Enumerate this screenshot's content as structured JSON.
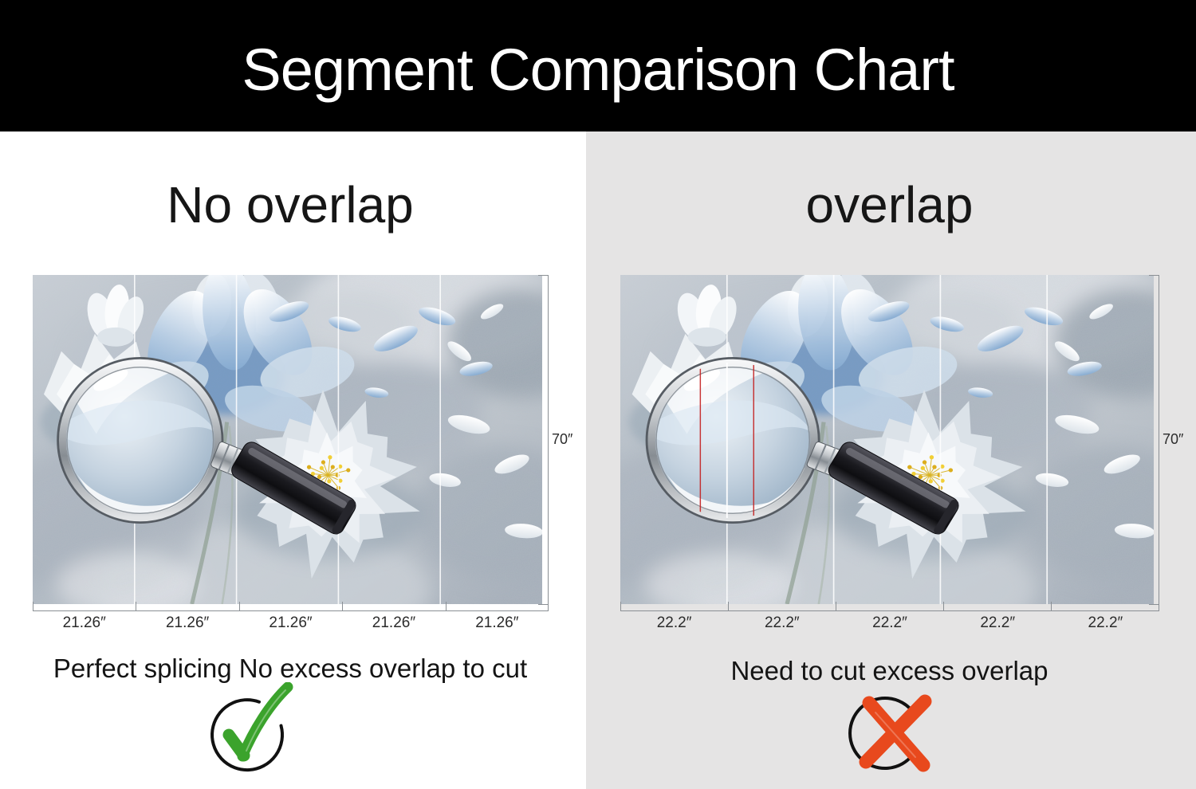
{
  "header": {
    "title": "Segment Comparison Chart"
  },
  "panels": [
    {
      "heading": "No overlap",
      "caption": "Perfect splicing No excess overlap to cut",
      "segment_labels": [
        "21.26″",
        "21.26″",
        "21.26″",
        "21.26″",
        "21.26″"
      ],
      "height_label": "70″",
      "verdict": "check"
    },
    {
      "heading": "overlap",
      "caption": "Need to cut excess overlap",
      "segment_labels": [
        "22.2″",
        "22.2″",
        "22.2″",
        "22.2″",
        "22.2″"
      ],
      "height_label": "70″",
      "verdict": "cross"
    }
  ],
  "colors": {
    "header_bg": "#000000",
    "header_text": "#ffffff",
    "left_panel_bg": "#ffffff",
    "right_panel_bg": "#e5e4e4",
    "check_green": "#3ba32c",
    "cross_orange": "#e8491d",
    "overlap_line_red": "#c42020",
    "dimension_line": "#8a8f94"
  }
}
